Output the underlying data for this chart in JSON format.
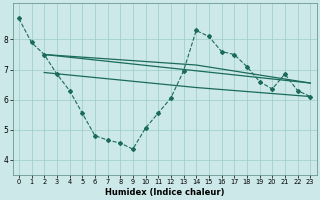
{
  "xlabel": "Humidex (Indice chaleur)",
  "bg_color": "#cce8e8",
  "grid_color": "#99cccc",
  "line_color": "#1a6b5a",
  "xlim": [
    -0.5,
    23.5
  ],
  "ylim": [
    3.5,
    9.2
  ],
  "yticks": [
    4,
    5,
    6,
    7,
    8
  ],
  "xticks": [
    0,
    1,
    2,
    3,
    4,
    5,
    6,
    7,
    8,
    9,
    10,
    11,
    12,
    13,
    14,
    15,
    16,
    17,
    18,
    19,
    20,
    21,
    22,
    23
  ],
  "series_dashed": {
    "x": [
      0,
      1,
      2,
      3,
      4,
      5,
      6,
      7,
      8,
      9,
      10,
      11,
      12,
      13,
      14,
      15,
      16,
      17,
      18,
      19,
      20,
      21,
      22,
      23
    ],
    "y": [
      8.7,
      7.9,
      7.5,
      6.85,
      6.3,
      5.55,
      4.8,
      4.65,
      4.55,
      4.35,
      5.05,
      5.55,
      6.05,
      6.95,
      8.3,
      8.1,
      7.6,
      7.5,
      7.1,
      6.6,
      6.35,
      6.85,
      6.3,
      6.1
    ]
  },
  "series_line1": {
    "x": [
      2,
      23
    ],
    "y": [
      7.5,
      6.55
    ]
  },
  "series_line2": {
    "x": [
      2,
      14,
      23
    ],
    "y": [
      7.5,
      7.15,
      6.55
    ]
  },
  "series_line3": {
    "x": [
      2,
      14,
      23
    ],
    "y": [
      6.9,
      6.4,
      6.1
    ]
  }
}
